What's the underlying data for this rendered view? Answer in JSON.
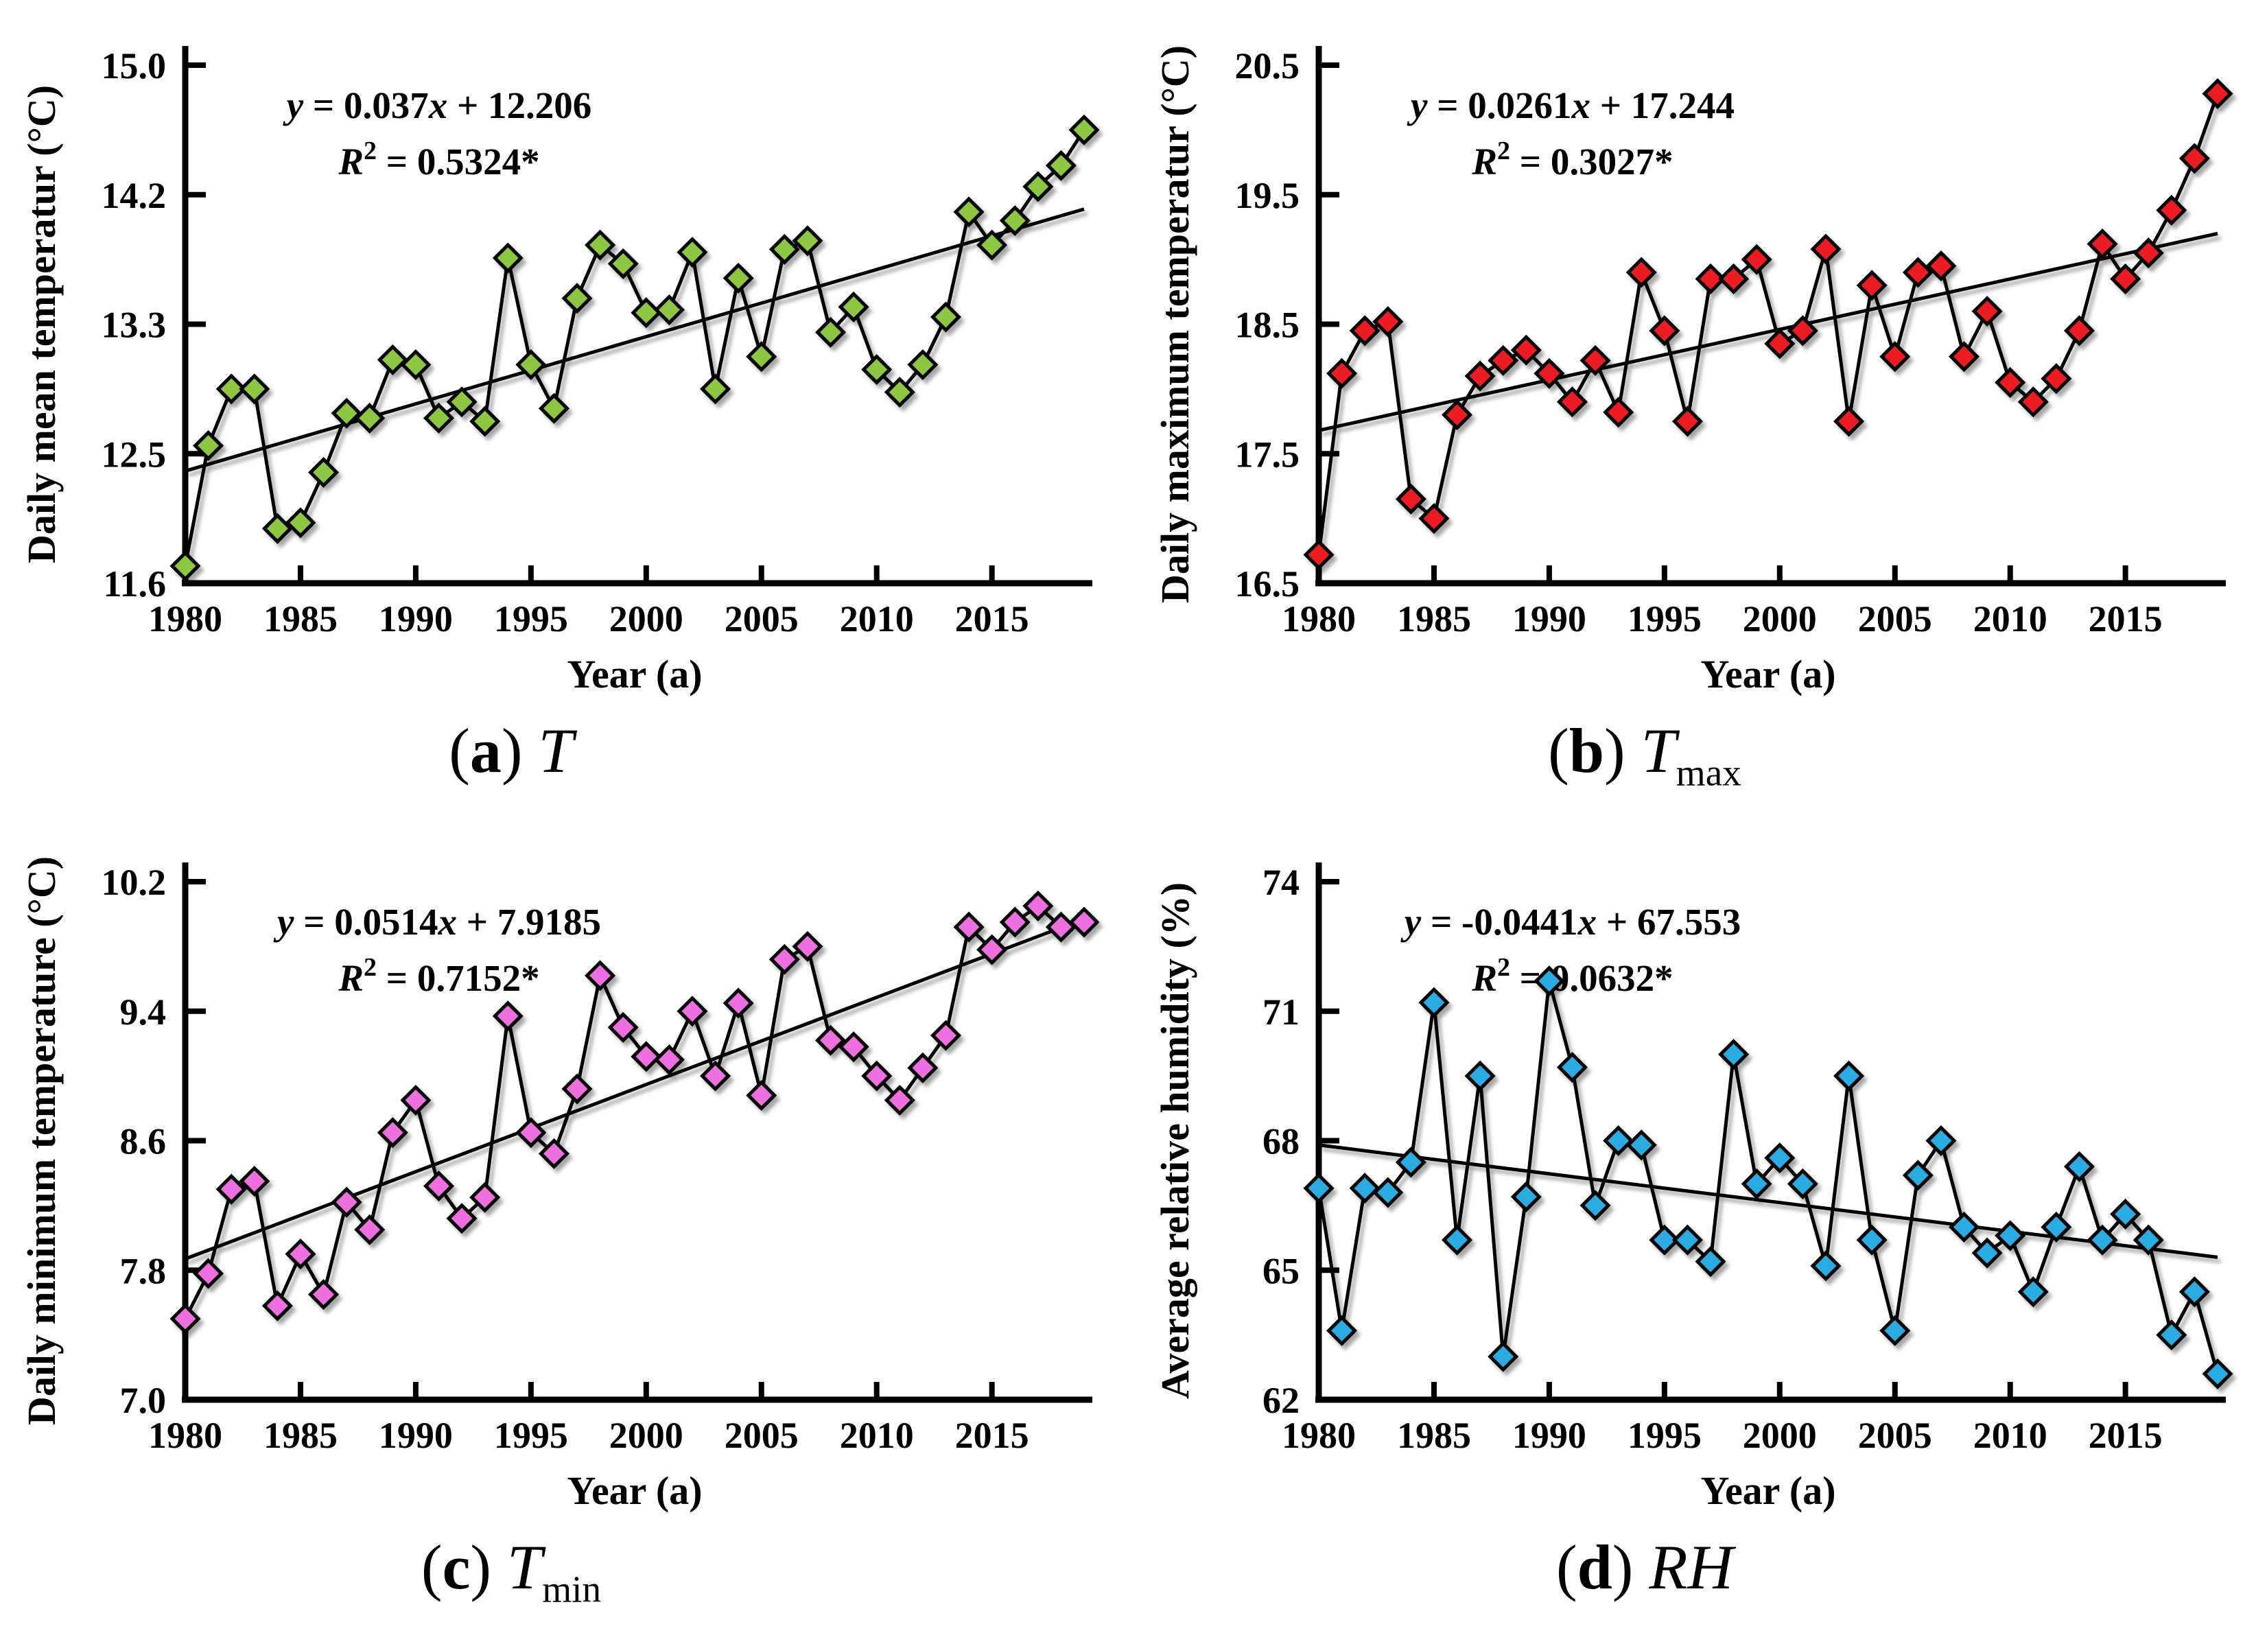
{
  "page": {
    "background": "#ffffff"
  },
  "figure": {
    "x_axis_label": "Year (a)",
    "x_tick_labels": [
      "1980",
      "1985",
      "1990",
      "1995",
      "2000",
      "2005",
      "2010",
      "2015"
    ]
  },
  "chart_data": [
    {
      "type": "line",
      "panel_id": "a",
      "caption": {
        "open": "(",
        "letter": "a",
        "close": ") ",
        "symbol": "T",
        "sub": ""
      },
      "xlabel": "Year (a)",
      "ylabel": "Daily mean temperatur (°C)",
      "marker_color": "#8DC63F",
      "line_color": "#000000",
      "equation": {
        "var1": "y",
        "mid": " = 0.037",
        "var2": "x",
        "tail": " + 12.206",
        "r_base": "R",
        "r_sup": "2",
        "r_tail": " = 0.5324*"
      },
      "slope": 0.037,
      "intercept": 12.206,
      "r_squared": 0.5324,
      "y_ticks": [
        11.6,
        12.5,
        13.3,
        14.2,
        15.0
      ],
      "y_tick_labels": [
        "11.6",
        "12.5",
        "13.3",
        "14.2",
        "15.0"
      ],
      "x_ticks": [
        1980,
        1985,
        1990,
        1995,
        2000,
        2005,
        2010,
        2015
      ],
      "x_range": [
        1980,
        2019
      ],
      "grid": false,
      "trend_line": {
        "start_year": 1980,
        "start_value": 12.38,
        "end_year": 2019,
        "end_value": 14.1
      },
      "years": [
        1980,
        1981,
        1982,
        1983,
        1984,
        1985,
        1986,
        1987,
        1988,
        1989,
        1990,
        1991,
        1992,
        1993,
        1994,
        1995,
        1996,
        1997,
        1998,
        1999,
        2000,
        2001,
        2002,
        2003,
        2004,
        2005,
        2006,
        2007,
        2008,
        2009,
        2010,
        2011,
        2012,
        2013,
        2014,
        2015,
        2016,
        2017,
        2018,
        2019
      ],
      "values": [
        11.72,
        12.55,
        12.9,
        12.9,
        11.98,
        12.02,
        12.37,
        12.75,
        12.72,
        13.08,
        13.05,
        12.72,
        12.82,
        12.7,
        13.76,
        13.05,
        12.78,
        13.48,
        13.85,
        13.72,
        13.38,
        13.4,
        13.8,
        12.9,
        13.62,
        13.1,
        13.82,
        13.88,
        13.25,
        13.42,
        13.02,
        12.88,
        13.05,
        13.35,
        14.08,
        13.85,
        14.02,
        14.25,
        14.38,
        14.6
      ]
    },
    {
      "type": "line",
      "panel_id": "b",
      "caption": {
        "open": "(",
        "letter": "b",
        "close": ") ",
        "symbol": "T",
        "sub": "max"
      },
      "xlabel": "Year (a)",
      "ylabel": "Daily maximum temperatur (°C)",
      "marker_color": "#ED1C24",
      "line_color": "#000000",
      "equation": {
        "var1": "y",
        "mid": " = 0.0261",
        "var2": "x",
        "tail": " + 17.244",
        "r_base": "R",
        "r_sup": "2",
        "r_tail": " = 0.3027*"
      },
      "slope": 0.0261,
      "intercept": 17.244,
      "r_squared": 0.3027,
      "y_ticks": [
        16.5,
        17.5,
        18.5,
        19.5,
        20.5
      ],
      "y_tick_labels": [
        "16.5",
        "17.5",
        "18.5",
        "19.5",
        "20.5"
      ],
      "x_ticks": [
        1980,
        1985,
        1990,
        1995,
        2000,
        2005,
        2010,
        2015
      ],
      "x_range": [
        1980,
        2019
      ],
      "grid": false,
      "trend_line": {
        "start_year": 1980,
        "start_value": 17.68,
        "end_year": 2019,
        "end_value": 19.2
      },
      "years": [
        1980,
        1981,
        1982,
        1983,
        1984,
        1985,
        1986,
        1987,
        1988,
        1989,
        1990,
        1991,
        1992,
        1993,
        1994,
        1995,
        1996,
        1997,
        1998,
        1999,
        2000,
        2001,
        2002,
        2003,
        2004,
        2005,
        2006,
        2007,
        2008,
        2009,
        2010,
        2011,
        2012,
        2013,
        2014,
        2015,
        2016,
        2017,
        2018,
        2019
      ],
      "values": [
        16.72,
        18.12,
        18.45,
        18.52,
        17.15,
        17.0,
        17.8,
        18.1,
        18.22,
        18.3,
        18.12,
        17.9,
        18.22,
        17.82,
        18.9,
        18.45,
        17.75,
        18.85,
        18.85,
        19.0,
        18.35,
        18.45,
        19.08,
        17.75,
        18.8,
        18.25,
        18.9,
        18.95,
        18.25,
        18.6,
        18.05,
        17.9,
        18.08,
        18.45,
        19.12,
        18.85,
        19.05,
        19.38,
        19.78,
        20.28
      ]
    },
    {
      "type": "line",
      "panel_id": "c",
      "caption": {
        "open": "(",
        "letter": "c",
        "close": ") ",
        "symbol": "T",
        "sub": "min"
      },
      "xlabel": "Year (a)",
      "ylabel": "Daily minimum temperature (°C)",
      "marker_color": "#EE6FE0",
      "line_color": "#000000",
      "equation": {
        "var1": "y",
        "mid": " = 0.0514",
        "var2": "x",
        "tail": " + 7.9185",
        "r_base": "R",
        "r_sup": "2",
        "r_tail": " = 0.7152*"
      },
      "slope": 0.0514,
      "intercept": 7.9185,
      "r_squared": 0.7152,
      "y_ticks": [
        7.0,
        7.8,
        8.6,
        9.4,
        10.2
      ],
      "y_tick_labels": [
        "7.0",
        "7.8",
        "8.6",
        "9.4",
        "10.2"
      ],
      "x_ticks": [
        1980,
        1985,
        1990,
        1995,
        2000,
        2005,
        2010,
        2015
      ],
      "x_range": [
        1980,
        2019
      ],
      "grid": false,
      "trend_line": {
        "start_year": 1980,
        "start_value": 7.87,
        "end_year": 2019,
        "end_value": 9.97
      },
      "years": [
        1980,
        1981,
        1982,
        1983,
        1984,
        1985,
        1986,
        1987,
        1988,
        1989,
        1990,
        1991,
        1992,
        1993,
        1994,
        1995,
        1996,
        1997,
        1998,
        1999,
        2000,
        2001,
        2002,
        2003,
        2004,
        2005,
        2006,
        2007,
        2008,
        2009,
        2010,
        2011,
        2012,
        2013,
        2014,
        2015,
        2016,
        2017,
        2018,
        2019
      ],
      "values": [
        7.5,
        7.78,
        8.3,
        8.35,
        7.58,
        7.9,
        7.65,
        8.22,
        8.05,
        8.65,
        8.85,
        8.32,
        8.12,
        8.25,
        9.37,
        8.65,
        8.52,
        8.92,
        9.62,
        9.3,
        9.12,
        9.1,
        9.4,
        9.0,
        9.45,
        8.88,
        9.72,
        9.8,
        9.22,
        9.18,
        9.0,
        8.85,
        9.05,
        9.25,
        9.92,
        9.78,
        9.95,
        10.05,
        9.92,
        9.95
      ]
    },
    {
      "type": "line",
      "panel_id": "d",
      "caption": {
        "open": "(",
        "letter": "d",
        "close": ") ",
        "symbol": "RH",
        "sub": ""
      },
      "xlabel": "Year (a)",
      "ylabel": "Average relative humidity (%)",
      "marker_color": "#29ABE2",
      "line_color": "#000000",
      "equation": {
        "var1": "y",
        "mid": " = -0.0441",
        "var2": "x",
        "tail": " + 67.553",
        "r_base": "R",
        "r_sup": "2",
        "r_tail": " = 0.0632*"
      },
      "slope": -0.0441,
      "intercept": 67.553,
      "r_squared": 0.0632,
      "y_ticks": [
        62,
        65,
        68,
        71,
        74
      ],
      "y_tick_labels": [
        "62",
        "65",
        "68",
        "71",
        "74"
      ],
      "x_ticks": [
        1980,
        1985,
        1990,
        1995,
        2000,
        2005,
        2010,
        2015
      ],
      "x_range": [
        1980,
        2019
      ],
      "grid": false,
      "trend_line": {
        "start_year": 1980,
        "start_value": 67.9,
        "end_year": 2019,
        "end_value": 65.3
      },
      "years": [
        1980,
        1981,
        1982,
        1983,
        1984,
        1985,
        1986,
        1987,
        1988,
        1989,
        1990,
        1991,
        1992,
        1993,
        1994,
        1995,
        1996,
        1997,
        1998,
        1999,
        2000,
        2001,
        2002,
        2003,
        2004,
        2005,
        2006,
        2007,
        2008,
        2009,
        2010,
        2011,
        2012,
        2013,
        2014,
        2015,
        2016,
        2017,
        2018,
        2019
      ],
      "values": [
        66.9,
        63.6,
        66.9,
        66.8,
        67.5,
        71.2,
        65.7,
        69.5,
        63.0,
        66.7,
        71.7,
        69.7,
        66.5,
        68.0,
        67.9,
        65.7,
        65.7,
        65.2,
        70.0,
        67.0,
        67.6,
        67.0,
        65.1,
        69.5,
        65.7,
        63.6,
        67.2,
        68.0,
        66.0,
        65.4,
        65.8,
        64.5,
        66.0,
        67.4,
        65.7,
        66.3,
        65.7,
        63.5,
        64.5,
        62.6
      ]
    }
  ]
}
